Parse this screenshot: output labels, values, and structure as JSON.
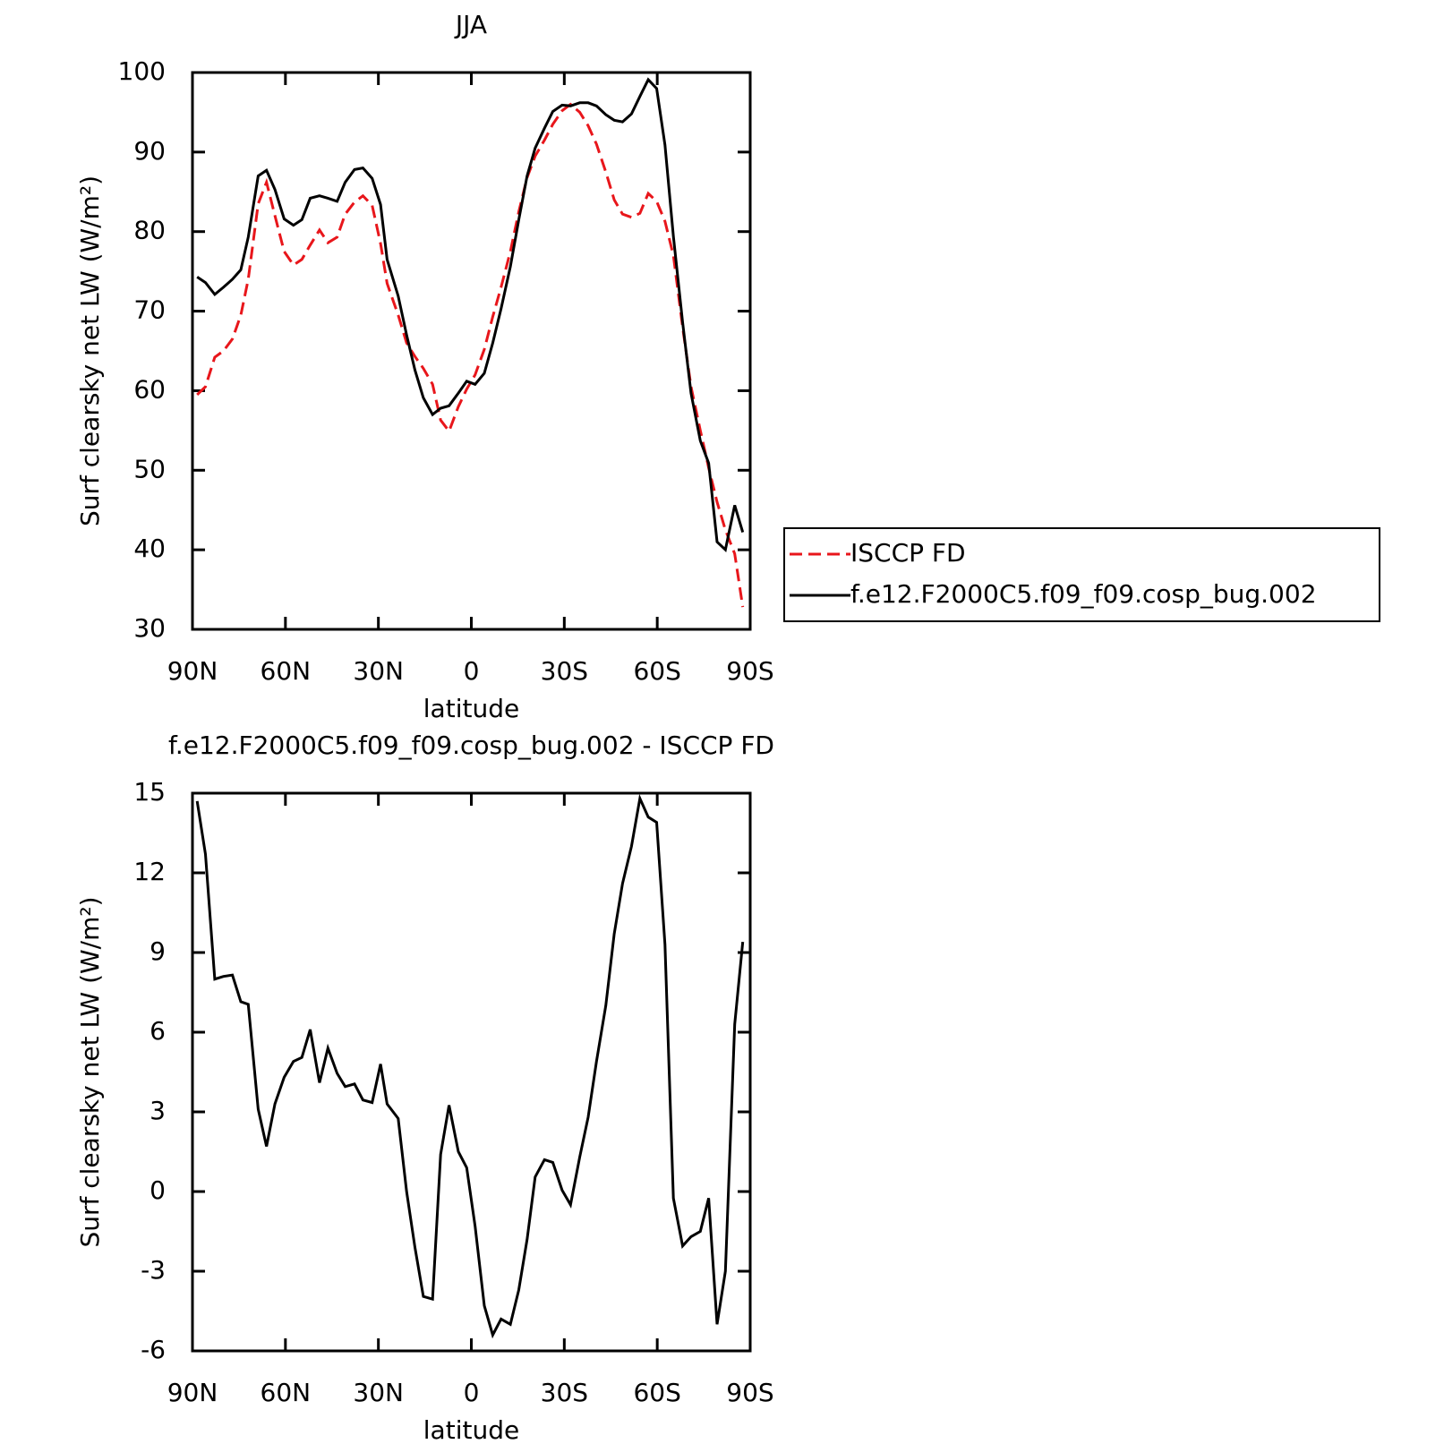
{
  "chart_data": [
    {
      "type": "line",
      "title": "JJA",
      "x_label": "latitude",
      "y_label": "Surf clearsky net LW (W/m²)",
      "xlim": [
        90,
        -90
      ],
      "xticks": [
        {
          "value": 90,
          "label": "90N"
        },
        {
          "value": 60,
          "label": "60N"
        },
        {
          "value": 30,
          "label": "30N"
        },
        0,
        {
          "value": -30,
          "label": "30S"
        },
        {
          "value": -60,
          "label": "60S"
        },
        {
          "value": -90,
          "label": "90S"
        }
      ],
      "ylim": [
        30,
        100
      ],
      "yticks": [
        30,
        40,
        50,
        60,
        70,
        80,
        90,
        100
      ],
      "legend": "right",
      "x": [
        88.5,
        85.8,
        82.8,
        80,
        77.1,
        74.4,
        72,
        68.8,
        66.1,
        63.4,
        60.4,
        57.4,
        54.7,
        52,
        49,
        46.3,
        43.3,
        40.7,
        37.7,
        35,
        32,
        29.3,
        27.2,
        23.6,
        20.9,
        18.2,
        15.5,
        12.5,
        9.9,
        7.2,
        4.2,
        1.5,
        -1.2,
        -4.2,
        -6.9,
        -9.6,
        -12.6,
        -15.3,
        -18,
        -20.6,
        -23.6,
        -26.3,
        -29.3,
        -32,
        -35,
        -37.7,
        -40.4,
        -43.4,
        -46.1,
        -48.8,
        -51.7,
        -54.4,
        -57.1,
        -59.8,
        -62.5,
        -65.2,
        -68.2,
        -70.9,
        -73.9,
        -76.6,
        -79.3,
        -82,
        -85,
        -87.6
      ],
      "series": [
        {
          "name": "ISCCP FD",
          "color": "#e8161b",
          "dashed": true,
          "values": [
            59.5,
            60.5,
            64.2,
            65,
            66.5,
            69.5,
            74,
            83.5,
            86.2,
            82,
            77.5,
            75.8,
            76.5,
            78.3,
            80.2,
            78.6,
            79.3,
            82.2,
            83.7,
            84.5,
            83.3,
            78.5,
            73.5,
            69.5,
            66,
            64.3,
            62.8,
            60.8,
            56.3,
            54.9,
            58,
            60.2,
            62,
            65.2,
            69.3,
            73,
            77.5,
            82.5,
            86.8,
            89.5,
            91.5,
            93.5,
            95.2,
            96,
            95,
            93.3,
            91,
            87.5,
            84,
            82.2,
            81.8,
            82.3,
            84.8,
            83.8,
            81.3,
            77,
            68,
            60.5,
            55,
            50.3,
            46,
            42.5,
            39.5,
            32.8
          ]
        },
        {
          "name": "f.e12.F2000C5.f09_f09.cosp_bug.002",
          "color": "#000000",
          "dashed": false,
          "values": [
            74.3,
            73.6,
            72.1,
            73,
            74,
            75.2,
            79.3,
            87,
            87.7,
            85.3,
            81.6,
            80.8,
            81.5,
            84.2,
            84.5,
            84.2,
            83.8,
            86.2,
            87.8,
            88,
            86.7,
            83.4,
            76.5,
            71.9,
            67,
            62.6,
            59.1,
            57,
            57.8,
            58.1,
            59.7,
            61.2,
            60.8,
            62.2,
            66,
            70.3,
            75.6,
            81.5,
            87,
            90.5,
            93,
            95.1,
            95.9,
            95.8,
            96.2,
            96.2,
            95.8,
            94.7,
            94,
            93.8,
            94.8,
            97,
            99.1,
            98,
            90.9,
            79.4,
            68.6,
            59.7,
            53.7,
            50.9,
            41,
            40,
            45.6,
            42.2
          ]
        }
      ]
    },
    {
      "type": "line",
      "title": "f.e12.F2000C5.f09_f09.cosp_bug.002 - ISCCP FD",
      "x_label": "latitude",
      "y_label": "Surf clearsky net LW (W/m²)",
      "xlim": [
        90,
        -90
      ],
      "xticks": [
        {
          "value": 90,
          "label": "90N"
        },
        {
          "value": 60,
          "label": "60N"
        },
        {
          "value": 30,
          "label": "30N"
        },
        0,
        {
          "value": -30,
          "label": "30S"
        },
        {
          "value": -60,
          "label": "60S"
        },
        {
          "value": -90,
          "label": "90S"
        }
      ],
      "ylim": [
        -6,
        15
      ],
      "yticks": [
        -6,
        -3,
        0,
        3,
        6,
        9,
        12,
        15
      ],
      "color": "#000000",
      "x": [
        88.5,
        85.8,
        82.8,
        80,
        77.1,
        74.4,
        72,
        68.8,
        66.1,
        63.4,
        60.4,
        57.4,
        54.7,
        52,
        49,
        46.3,
        43.3,
        40.7,
        37.7,
        35,
        32,
        29.3,
        27.2,
        23.6,
        20.9,
        18.2,
        15.5,
        12.5,
        9.9,
        7.2,
        4.2,
        1.5,
        -1.2,
        -4.2,
        -6.9,
        -9.6,
        -12.6,
        -15.3,
        -18,
        -20.6,
        -23.6,
        -26.3,
        -29.3,
        -32,
        -35,
        -37.7,
        -40.4,
        -43.4,
        -46.1,
        -48.8,
        -51.7,
        -54.4,
        -57.1,
        -59.8,
        -62.5,
        -65.2,
        -68.2,
        -70.9,
        -73.9,
        -76.6,
        -79.3,
        -82,
        -85,
        -87.6
      ],
      "values": [
        14.7,
        12.7,
        8,
        8.1,
        8.15,
        7.15,
        7.05,
        3.1,
        1.7,
        3.3,
        4.3,
        4.9,
        5.05,
        6.1,
        4.1,
        5.4,
        4.45,
        3.95,
        4.05,
        3.45,
        3.35,
        4.8,
        3.3,
        2.75,
        0,
        -2.1,
        -3.95,
        -4.05,
        1.4,
        3.25,
        1.5,
        0.9,
        -1.3,
        -4.3,
        -5.4,
        -4.8,
        -5,
        -3.7,
        -1.8,
        0.55,
        1.2,
        1.1,
        0.05,
        -0.5,
        1.3,
        2.8,
        4.9,
        7,
        9.7,
        11.6,
        13,
        14.8,
        14.1,
        13.9,
        9.3,
        -0.25,
        -2.05,
        -1.7,
        -1.5,
        -0.25,
        -5,
        -3,
        6.3,
        9.4
      ]
    }
  ]
}
